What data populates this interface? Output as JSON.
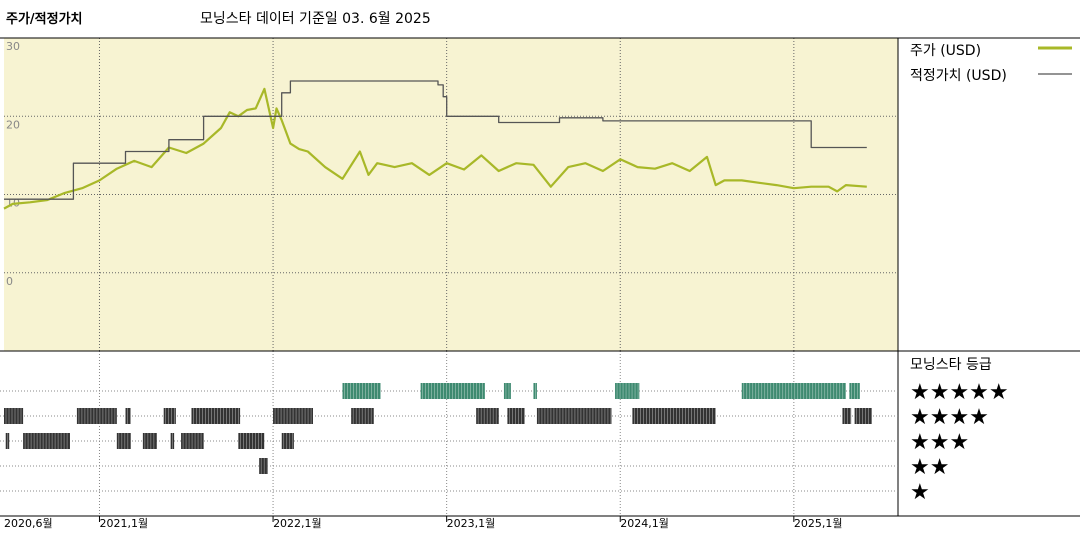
{
  "header": {
    "title": "주가/적정가치",
    "subtitle": "모닝스타 데이터 기준일 03. 6월 2025"
  },
  "colors": {
    "price": "#a8b828",
    "fair_value": "#555555",
    "plot_bg": "#f7f3d2",
    "rating_green": "#3e8a70",
    "rating_dark": "#333333"
  },
  "legend": {
    "price_label": "주가 (USD)",
    "fair_value_label": "적정가치 (USD)",
    "rating_title": "모닝스타 등급"
  },
  "chart_data": [
    {
      "type": "line",
      "ylim": [
        -10,
        30
      ],
      "yticks": [
        "30",
        "20",
        "10",
        "0"
      ],
      "xlim": [
        2020.45,
        2025.6
      ],
      "xtick_labels": [
        "2020,6월",
        "2021,1월",
        "2022,1월",
        "2023,1월",
        "2024,1월",
        "2025,1월"
      ],
      "xtick_values": [
        2020.45,
        2021.0,
        2022.0,
        2023.0,
        2024.0,
        2025.0
      ],
      "grid": true,
      "legend_position": "right",
      "series": [
        {
          "name": "주가 (USD)",
          "x": [
            2020.45,
            2020.5,
            2020.6,
            2020.7,
            2020.8,
            2020.9,
            2021.0,
            2021.1,
            2021.2,
            2021.3,
            2021.4,
            2021.5,
            2021.6,
            2021.7,
            2021.75,
            2021.8,
            2021.85,
            2021.9,
            2021.95,
            2022.0,
            2022.02,
            2022.05,
            2022.1,
            2022.15,
            2022.2,
            2022.3,
            2022.4,
            2022.5,
            2022.55,
            2022.6,
            2022.7,
            2022.8,
            2022.9,
            2023.0,
            2023.1,
            2023.2,
            2023.3,
            2023.4,
            2023.5,
            2023.6,
            2023.7,
            2023.8,
            2023.9,
            2024.0,
            2024.1,
            2024.2,
            2024.3,
            2024.4,
            2024.5,
            2024.55,
            2024.6,
            2024.7,
            2024.8,
            2024.9,
            2025.0,
            2025.1,
            2025.2,
            2025.25,
            2025.3,
            2025.42
          ],
          "values": [
            8.2,
            8.8,
            9.0,
            9.3,
            10.2,
            10.8,
            11.8,
            13.3,
            14.3,
            13.5,
            16.0,
            15.3,
            16.5,
            18.5,
            20.5,
            20.0,
            20.8,
            21.0,
            23.5,
            18.5,
            21.0,
            19.5,
            16.5,
            15.8,
            15.5,
            13.5,
            12.0,
            15.5,
            12.5,
            14.0,
            13.5,
            14.0,
            12.5,
            14.0,
            13.2,
            15.0,
            13.0,
            14.0,
            13.8,
            11.0,
            13.5,
            14.0,
            13.0,
            14.5,
            13.5,
            13.3,
            14.0,
            13.0,
            14.8,
            11.2,
            11.8,
            11.8,
            11.5,
            11.2,
            10.8,
            11.0,
            11.0,
            10.4,
            11.2,
            11.0
          ]
        },
        {
          "name": "적정가치 (USD)",
          "x": [
            2020.45,
            2020.85,
            2020.85,
            2021.15,
            2021.15,
            2021.4,
            2021.4,
            2021.6,
            2021.6,
            2022.05,
            2022.05,
            2022.1,
            2022.1,
            2022.95,
            2022.95,
            2022.98,
            2022.98,
            2023.0,
            2023.0,
            2023.3,
            2023.3,
            2023.65,
            2023.65,
            2023.9,
            2023.9,
            2025.1,
            2025.1,
            2025.42
          ],
          "values": [
            9.4,
            9.4,
            14.0,
            14.0,
            15.5,
            15.5,
            17.0,
            17.0,
            20.0,
            20.0,
            23.0,
            23.0,
            24.5,
            24.5,
            24.0,
            24.0,
            22.5,
            22.5,
            20.0,
            20.0,
            19.2,
            19.2,
            19.8,
            19.8,
            19.4,
            19.4,
            16.0,
            16.0
          ]
        }
      ]
    },
    {
      "type": "heatmap",
      "title": "모닝스타 등급",
      "levels": [
        "★★★★★",
        "★★★★",
        "★★★",
        "★★",
        "★"
      ],
      "rating_periods": [
        {
          "stars": 5,
          "ranges": [
            [
              2022.4,
              2022.62
            ],
            [
              2022.85,
              2023.22
            ],
            [
              2023.33,
              2023.37
            ],
            [
              2023.5,
              2023.52
            ],
            [
              2023.97,
              2024.11
            ],
            [
              2024.7,
              2025.3
            ],
            [
              2025.32,
              2025.38
            ]
          ]
        },
        {
          "stars": 4,
          "ranges": [
            [
              2020.45,
              2020.56
            ],
            [
              2020.87,
              2021.1
            ],
            [
              2021.15,
              2021.18
            ],
            [
              2021.37,
              2021.44
            ],
            [
              2021.53,
              2021.81
            ],
            [
              2022.0,
              2022.23
            ],
            [
              2022.45,
              2022.58
            ],
            [
              2023.17,
              2023.3
            ],
            [
              2023.35,
              2023.45
            ],
            [
              2023.52,
              2023.95
            ],
            [
              2024.07,
              2024.55
            ],
            [
              2025.28,
              2025.33
            ],
            [
              2025.35,
              2025.45
            ]
          ]
        },
        {
          "stars": 3,
          "ranges": [
            [
              2020.46,
              2020.48
            ],
            [
              2020.56,
              2020.83
            ],
            [
              2021.1,
              2021.18
            ],
            [
              2021.25,
              2021.33
            ],
            [
              2021.41,
              2021.43
            ],
            [
              2021.47,
              2021.6
            ],
            [
              2021.8,
              2021.95
            ],
            [
              2022.05,
              2022.12
            ]
          ]
        },
        {
          "stars": 2,
          "ranges": [
            [
              2021.92,
              2021.97
            ]
          ]
        },
        {
          "stars": 1,
          "ranges": []
        }
      ]
    }
  ]
}
